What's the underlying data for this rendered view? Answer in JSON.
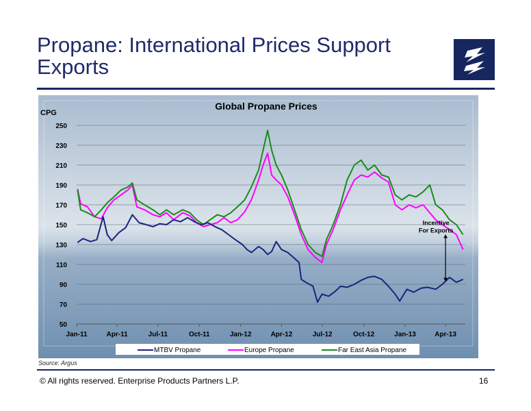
{
  "slide": {
    "title": "Propane:  International Prices Support Exports",
    "source": "Source:  Argus",
    "copyright": "©  All rights reserved. Enterprise Products Partners L.P.",
    "page_number": "16"
  },
  "colors": {
    "navy": "#16265e",
    "mtbv": "#1a237e",
    "europe": "#ff00ff",
    "far_east": "#1a8a1a"
  },
  "chart_data": {
    "type": "line",
    "title": "Global Propane Prices",
    "ylabel": "CPG",
    "ylim": [
      50,
      250
    ],
    "yticks": [
      50,
      70,
      90,
      110,
      130,
      150,
      170,
      190,
      210,
      230,
      250
    ],
    "xlim": [
      "2011-01-01",
      "2013-05-15"
    ],
    "xticks": [
      "Jan-11",
      "Apr-11",
      "Jul-11",
      "Oct-11",
      "Jan-12",
      "Apr-12",
      "Jul-12",
      "Oct-12",
      "Jan-13",
      "Apr-13"
    ],
    "grid": "horizontal",
    "legend_position": "bottom",
    "annotation": {
      "line1": "Incentive",
      "line2": "For Exports",
      "date": "2013-04-01",
      "y_from": 93,
      "y_to": 140
    },
    "series": [
      {
        "name": "MTBV Propane",
        "color": "#1a237e",
        "points": [
          [
            "2011-01-03",
            132
          ],
          [
            "2011-01-15",
            136
          ],
          [
            "2011-02-01",
            133
          ],
          [
            "2011-02-15",
            135
          ],
          [
            "2011-03-01",
            158
          ],
          [
            "2011-03-10",
            140
          ],
          [
            "2011-03-20",
            134
          ],
          [
            "2011-04-05",
            142
          ],
          [
            "2011-04-20",
            147
          ],
          [
            "2011-05-05",
            160
          ],
          [
            "2011-05-20",
            152
          ],
          [
            "2011-06-05",
            150
          ],
          [
            "2011-06-20",
            148
          ],
          [
            "2011-07-05",
            151
          ],
          [
            "2011-07-20",
            150
          ],
          [
            "2011-08-05",
            155
          ],
          [
            "2011-08-20",
            153
          ],
          [
            "2011-09-05",
            157
          ],
          [
            "2011-09-20",
            153
          ],
          [
            "2011-10-05",
            150
          ],
          [
            "2011-10-20",
            152
          ],
          [
            "2011-11-05",
            148
          ],
          [
            "2011-11-20",
            145
          ],
          [
            "2011-12-05",
            140
          ],
          [
            "2011-12-20",
            135
          ],
          [
            "2012-01-05",
            130
          ],
          [
            "2012-01-15",
            125
          ],
          [
            "2012-01-25",
            122
          ],
          [
            "2012-02-10",
            128
          ],
          [
            "2012-02-20",
            125
          ],
          [
            "2012-03-01",
            120
          ],
          [
            "2012-03-10",
            123
          ],
          [
            "2012-03-20",
            133
          ],
          [
            "2012-04-01",
            125
          ],
          [
            "2012-04-15",
            122
          ],
          [
            "2012-04-25",
            118
          ],
          [
            "2012-05-10",
            112
          ],
          [
            "2012-05-15",
            95
          ],
          [
            "2012-05-25",
            92
          ],
          [
            "2012-06-10",
            88
          ],
          [
            "2012-06-20",
            72
          ],
          [
            "2012-06-30",
            80
          ],
          [
            "2012-07-15",
            78
          ],
          [
            "2012-07-30",
            83
          ],
          [
            "2012-08-10",
            88
          ],
          [
            "2012-08-25",
            87
          ],
          [
            "2012-09-10",
            90
          ],
          [
            "2012-09-25",
            94
          ],
          [
            "2012-10-10",
            97
          ],
          [
            "2012-10-25",
            98
          ],
          [
            "2012-11-10",
            95
          ],
          [
            "2012-11-25",
            88
          ],
          [
            "2012-12-10",
            80
          ],
          [
            "2012-12-20",
            73
          ],
          [
            "2013-01-05",
            85
          ],
          [
            "2013-01-20",
            82
          ],
          [
            "2013-02-05",
            86
          ],
          [
            "2013-02-20",
            87
          ],
          [
            "2013-03-10",
            85
          ],
          [
            "2013-03-25",
            90
          ],
          [
            "2013-04-10",
            97
          ],
          [
            "2013-04-25",
            92
          ],
          [
            "2013-05-10",
            95
          ]
        ]
      },
      {
        "name": "Europe Propane",
        "color": "#ff00ff",
        "points": [
          [
            "2011-01-03",
            186
          ],
          [
            "2011-01-10",
            171
          ],
          [
            "2011-01-25",
            168
          ],
          [
            "2011-02-10",
            158
          ],
          [
            "2011-02-25",
            156
          ],
          [
            "2011-03-10",
            167
          ],
          [
            "2011-03-25",
            175
          ],
          [
            "2011-04-10",
            180
          ],
          [
            "2011-04-25",
            185
          ],
          [
            "2011-05-05",
            190
          ],
          [
            "2011-05-15",
            168
          ],
          [
            "2011-06-01",
            165
          ],
          [
            "2011-06-20",
            160
          ],
          [
            "2011-07-05",
            158
          ],
          [
            "2011-07-20",
            162
          ],
          [
            "2011-08-05",
            155
          ],
          [
            "2011-08-25",
            162
          ],
          [
            "2011-09-10",
            159
          ],
          [
            "2011-09-25",
            152
          ],
          [
            "2011-10-10",
            148
          ],
          [
            "2011-10-25",
            150
          ],
          [
            "2011-11-10",
            152
          ],
          [
            "2011-11-25",
            157
          ],
          [
            "2011-12-10",
            152
          ],
          [
            "2011-12-25",
            155
          ],
          [
            "2012-01-10",
            163
          ],
          [
            "2012-01-25",
            175
          ],
          [
            "2012-02-10",
            195
          ],
          [
            "2012-02-20",
            210
          ],
          [
            "2012-03-01",
            222
          ],
          [
            "2012-03-10",
            200
          ],
          [
            "2012-03-20",
            195
          ],
          [
            "2012-04-01",
            190
          ],
          [
            "2012-04-15",
            178
          ],
          [
            "2012-04-30",
            160
          ],
          [
            "2012-05-15",
            140
          ],
          [
            "2012-05-30",
            125
          ],
          [
            "2012-06-15",
            117
          ],
          [
            "2012-06-30",
            112
          ],
          [
            "2012-07-10",
            130
          ],
          [
            "2012-07-25",
            145
          ],
          [
            "2012-08-10",
            165
          ],
          [
            "2012-08-25",
            180
          ],
          [
            "2012-09-10",
            195
          ],
          [
            "2012-09-25",
            200
          ],
          [
            "2012-10-10",
            198
          ],
          [
            "2012-10-25",
            203
          ],
          [
            "2012-11-10",
            197
          ],
          [
            "2012-11-25",
            193
          ],
          [
            "2012-12-10",
            170
          ],
          [
            "2012-12-25",
            165
          ],
          [
            "2013-01-10",
            170
          ],
          [
            "2013-01-25",
            167
          ],
          [
            "2013-02-10",
            170
          ],
          [
            "2013-02-25",
            162
          ],
          [
            "2013-03-10",
            155
          ],
          [
            "2013-03-25",
            150
          ],
          [
            "2013-04-10",
            145
          ],
          [
            "2013-04-25",
            140
          ],
          [
            "2013-05-10",
            125
          ]
        ]
      },
      {
        "name": "Far East Asia Propane",
        "color": "#1a8a1a",
        "points": [
          [
            "2011-01-03",
            185
          ],
          [
            "2011-01-10",
            165
          ],
          [
            "2011-01-25",
            162
          ],
          [
            "2011-02-10",
            158
          ],
          [
            "2011-02-25",
            165
          ],
          [
            "2011-03-10",
            172
          ],
          [
            "2011-03-25",
            178
          ],
          [
            "2011-04-10",
            185
          ],
          [
            "2011-04-25",
            188
          ],
          [
            "2011-05-05",
            192
          ],
          [
            "2011-05-15",
            175
          ],
          [
            "2011-06-01",
            170
          ],
          [
            "2011-06-20",
            165
          ],
          [
            "2011-07-05",
            160
          ],
          [
            "2011-07-20",
            165
          ],
          [
            "2011-08-05",
            160
          ],
          [
            "2011-08-25",
            165
          ],
          [
            "2011-09-10",
            162
          ],
          [
            "2011-09-25",
            155
          ],
          [
            "2011-10-10",
            150
          ],
          [
            "2011-10-25",
            155
          ],
          [
            "2011-11-10",
            160
          ],
          [
            "2011-11-25",
            158
          ],
          [
            "2011-12-10",
            162
          ],
          [
            "2011-12-25",
            168
          ],
          [
            "2012-01-10",
            175
          ],
          [
            "2012-01-25",
            188
          ],
          [
            "2012-02-10",
            205
          ],
          [
            "2012-02-20",
            225
          ],
          [
            "2012-03-01",
            245
          ],
          [
            "2012-03-10",
            225
          ],
          [
            "2012-03-20",
            210
          ],
          [
            "2012-04-01",
            200
          ],
          [
            "2012-04-15",
            185
          ],
          [
            "2012-04-30",
            165
          ],
          [
            "2012-05-15",
            145
          ],
          [
            "2012-05-30",
            130
          ],
          [
            "2012-06-15",
            122
          ],
          [
            "2012-06-30",
            118
          ],
          [
            "2012-07-10",
            135
          ],
          [
            "2012-07-25",
            150
          ],
          [
            "2012-08-10",
            170
          ],
          [
            "2012-08-25",
            195
          ],
          [
            "2012-09-10",
            210
          ],
          [
            "2012-09-25",
            215
          ],
          [
            "2012-10-10",
            205
          ],
          [
            "2012-10-25",
            210
          ],
          [
            "2012-11-10",
            200
          ],
          [
            "2012-11-25",
            198
          ],
          [
            "2012-12-10",
            180
          ],
          [
            "2012-12-25",
            175
          ],
          [
            "2013-01-10",
            180
          ],
          [
            "2013-01-25",
            178
          ],
          [
            "2013-02-10",
            183
          ],
          [
            "2013-02-25",
            190
          ],
          [
            "2013-03-10",
            170
          ],
          [
            "2013-03-25",
            165
          ],
          [
            "2013-04-10",
            155
          ],
          [
            "2013-04-25",
            150
          ],
          [
            "2013-05-10",
            140
          ]
        ]
      }
    ]
  }
}
